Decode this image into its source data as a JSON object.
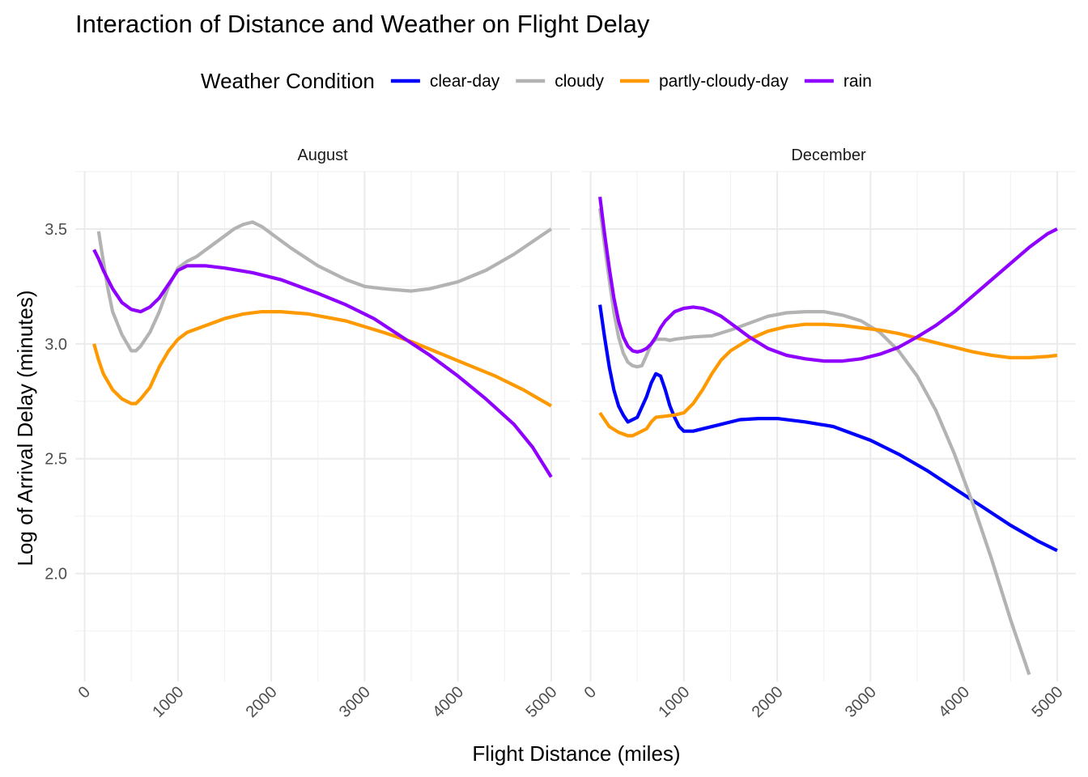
{
  "chart_data": {
    "type": "line",
    "title": "Interaction of Distance and Weather on Flight Delay",
    "xlabel": "Flight Distance (miles)",
    "ylabel": "Log of Arrival Delay (minutes)",
    "legend": {
      "title": "Weather Condition",
      "position": "top",
      "items": [
        {
          "name": "clear-day",
          "color": "#0000ff"
        },
        {
          "name": "cloudy",
          "color": "#b3b3b3"
        },
        {
          "name": "partly-cloudy-day",
          "color": "#ff9900"
        },
        {
          "name": "rain",
          "color": "#8f00ff"
        }
      ]
    },
    "xlim": [
      -100,
      5200
    ],
    "ylim": [
      1.53,
      3.75
    ],
    "x_ticks": [
      0,
      1000,
      2000,
      3000,
      4000,
      5000
    ],
    "x_tick_labels": [
      "0",
      "1000",
      "2000",
      "3000",
      "4000",
      "5000"
    ],
    "y_ticks": [
      2.0,
      2.5,
      3.0,
      3.5
    ],
    "y_tick_labels": [
      "2.0",
      "2.5",
      "3.0",
      "3.5"
    ],
    "grid": true,
    "panels": [
      {
        "label": "August",
        "series": [
          {
            "name": "cloudy",
            "color": "#b3b3b3",
            "points": [
              [
                150,
                3.49
              ],
              [
                200,
                3.36
              ],
              [
                250,
                3.24
              ],
              [
                300,
                3.14
              ],
              [
                400,
                3.04
              ],
              [
                500,
                2.97
              ],
              [
                550,
                2.97
              ],
              [
                600,
                2.99
              ],
              [
                700,
                3.05
              ],
              [
                800,
                3.14
              ],
              [
                900,
                3.25
              ],
              [
                1000,
                3.33
              ],
              [
                1100,
                3.36
              ],
              [
                1200,
                3.38
              ],
              [
                1300,
                3.41
              ],
              [
                1400,
                3.44
              ],
              [
                1500,
                3.47
              ],
              [
                1600,
                3.5
              ],
              [
                1700,
                3.52
              ],
              [
                1800,
                3.53
              ],
              [
                1900,
                3.51
              ],
              [
                2000,
                3.48
              ],
              [
                2200,
                3.42
              ],
              [
                2500,
                3.34
              ],
              [
                2800,
                3.28
              ],
              [
                3000,
                3.25
              ],
              [
                3200,
                3.24
              ],
              [
                3500,
                3.23
              ],
              [
                3700,
                3.24
              ],
              [
                4000,
                3.27
              ],
              [
                4300,
                3.32
              ],
              [
                4600,
                3.39
              ],
              [
                5000,
                3.5
              ]
            ]
          },
          {
            "name": "partly-cloudy-day",
            "color": "#ff9900",
            "points": [
              [
                100,
                3.0
              ],
              [
                150,
                2.93
              ],
              [
                200,
                2.87
              ],
              [
                300,
                2.8
              ],
              [
                400,
                2.76
              ],
              [
                500,
                2.74
              ],
              [
                550,
                2.74
              ],
              [
                600,
                2.76
              ],
              [
                700,
                2.81
              ],
              [
                800,
                2.9
              ],
              [
                900,
                2.97
              ],
              [
                1000,
                3.02
              ],
              [
                1100,
                3.05
              ],
              [
                1300,
                3.08
              ],
              [
                1500,
                3.11
              ],
              [
                1700,
                3.13
              ],
              [
                1900,
                3.14
              ],
              [
                2100,
                3.14
              ],
              [
                2400,
                3.13
              ],
              [
                2800,
                3.1
              ],
              [
                3200,
                3.05
              ],
              [
                3500,
                3.01
              ],
              [
                3800,
                2.96
              ],
              [
                4100,
                2.91
              ],
              [
                4400,
                2.86
              ],
              [
                4700,
                2.8
              ],
              [
                5000,
                2.73
              ]
            ]
          },
          {
            "name": "rain",
            "color": "#8f00ff",
            "points": [
              [
                100,
                3.41
              ],
              [
                150,
                3.37
              ],
              [
                200,
                3.32
              ],
              [
                300,
                3.24
              ],
              [
                400,
                3.18
              ],
              [
                500,
                3.15
              ],
              [
                600,
                3.14
              ],
              [
                700,
                3.16
              ],
              [
                800,
                3.2
              ],
              [
                900,
                3.26
              ],
              [
                1000,
                3.32
              ],
              [
                1100,
                3.34
              ],
              [
                1300,
                3.34
              ],
              [
                1500,
                3.33
              ],
              [
                1800,
                3.31
              ],
              [
                2100,
                3.28
              ],
              [
                2500,
                3.22
              ],
              [
                2800,
                3.17
              ],
              [
                3100,
                3.11
              ],
              [
                3400,
                3.03
              ],
              [
                3700,
                2.95
              ],
              [
                4000,
                2.86
              ],
              [
                4300,
                2.76
              ],
              [
                4600,
                2.65
              ],
              [
                4800,
                2.55
              ],
              [
                5000,
                2.42
              ]
            ]
          }
        ]
      },
      {
        "label": "December",
        "series": [
          {
            "name": "clear-day",
            "color": "#0000ff",
            "points": [
              [
                100,
                3.17
              ],
              [
                150,
                3.03
              ],
              [
                200,
                2.9
              ],
              [
                250,
                2.8
              ],
              [
                300,
                2.73
              ],
              [
                350,
                2.69
              ],
              [
                400,
                2.66
              ],
              [
                450,
                2.67
              ],
              [
                500,
                2.68
              ],
              [
                600,
                2.77
              ],
              [
                650,
                2.83
              ],
              [
                700,
                2.87
              ],
              [
                750,
                2.86
              ],
              [
                800,
                2.8
              ],
              [
                850,
                2.73
              ],
              [
                900,
                2.68
              ],
              [
                950,
                2.64
              ],
              [
                1000,
                2.62
              ],
              [
                1100,
                2.62
              ],
              [
                1200,
                2.63
              ],
              [
                1400,
                2.65
              ],
              [
                1600,
                2.67
              ],
              [
                1800,
                2.675
              ],
              [
                2000,
                2.675
              ],
              [
                2300,
                2.66
              ],
              [
                2600,
                2.64
              ],
              [
                3000,
                2.58
              ],
              [
                3300,
                2.52
              ],
              [
                3600,
                2.45
              ],
              [
                3900,
                2.37
              ],
              [
                4200,
                2.29
              ],
              [
                4500,
                2.21
              ],
              [
                4800,
                2.14
              ],
              [
                5000,
                2.1
              ]
            ]
          },
          {
            "name": "cloudy",
            "color": "#b3b3b3",
            "points": [
              [
                100,
                3.59
              ],
              [
                150,
                3.43
              ],
              [
                200,
                3.28
              ],
              [
                250,
                3.14
              ],
              [
                300,
                3.03
              ],
              [
                350,
                2.96
              ],
              [
                400,
                2.92
              ],
              [
                450,
                2.905
              ],
              [
                500,
                2.9
              ],
              [
                550,
                2.905
              ],
              [
                600,
                2.95
              ],
              [
                650,
                3.0
              ],
              [
                700,
                3.02
              ],
              [
                800,
                3.02
              ],
              [
                850,
                3.015
              ],
              [
                900,
                3.02
              ],
              [
                1000,
                3.025
              ],
              [
                1100,
                3.03
              ],
              [
                1300,
                3.035
              ],
              [
                1500,
                3.06
              ],
              [
                1700,
                3.09
              ],
              [
                1900,
                3.12
              ],
              [
                2100,
                3.135
              ],
              [
                2300,
                3.14
              ],
              [
                2500,
                3.14
              ],
              [
                2700,
                3.125
              ],
              [
                2900,
                3.1
              ],
              [
                3100,
                3.05
              ],
              [
                3300,
                2.97
              ],
              [
                3500,
                2.86
              ],
              [
                3700,
                2.71
              ],
              [
                3900,
                2.52
              ],
              [
                4100,
                2.3
              ],
              [
                4300,
                2.06
              ],
              [
                4500,
                1.8
              ],
              [
                4700,
                1.56
              ]
            ]
          },
          {
            "name": "partly-cloudy-day",
            "color": "#ff9900",
            "points": [
              [
                100,
                2.7
              ],
              [
                150,
                2.67
              ],
              [
                200,
                2.64
              ],
              [
                300,
                2.615
              ],
              [
                400,
                2.6
              ],
              [
                450,
                2.6
              ],
              [
                500,
                2.61
              ],
              [
                600,
                2.63
              ],
              [
                650,
                2.66
              ],
              [
                700,
                2.68
              ],
              [
                800,
                2.685
              ],
              [
                900,
                2.69
              ],
              [
                1000,
                2.7
              ],
              [
                1100,
                2.74
              ],
              [
                1200,
                2.8
              ],
              [
                1300,
                2.87
              ],
              [
                1400,
                2.93
              ],
              [
                1500,
                2.97
              ],
              [
                1700,
                3.02
              ],
              [
                1900,
                3.055
              ],
              [
                2100,
                3.075
              ],
              [
                2300,
                3.085
              ],
              [
                2500,
                3.085
              ],
              [
                2700,
                3.08
              ],
              [
                2900,
                3.07
              ],
              [
                3100,
                3.06
              ],
              [
                3300,
                3.045
              ],
              [
                3500,
                3.025
              ],
              [
                3700,
                3.005
              ],
              [
                3900,
                2.985
              ],
              [
                4100,
                2.965
              ],
              [
                4300,
                2.95
              ],
              [
                4500,
                2.94
              ],
              [
                4700,
                2.94
              ],
              [
                4900,
                2.945
              ],
              [
                5000,
                2.95
              ]
            ]
          },
          {
            "name": "rain",
            "color": "#8f00ff",
            "points": [
              [
                100,
                3.64
              ],
              [
                150,
                3.48
              ],
              [
                200,
                3.33
              ],
              [
                250,
                3.2
              ],
              [
                300,
                3.1
              ],
              [
                350,
                3.03
              ],
              [
                400,
                2.99
              ],
              [
                450,
                2.97
              ],
              [
                500,
                2.965
              ],
              [
                550,
                2.97
              ],
              [
                600,
                2.98
              ],
              [
                650,
                3.0
              ],
              [
                700,
                3.03
              ],
              [
                750,
                3.07
              ],
              [
                800,
                3.1
              ],
              [
                900,
                3.14
              ],
              [
                1000,
                3.155
              ],
              [
                1100,
                3.16
              ],
              [
                1200,
                3.155
              ],
              [
                1300,
                3.14
              ],
              [
                1400,
                3.12
              ],
              [
                1500,
                3.09
              ],
              [
                1700,
                3.03
              ],
              [
                1900,
                2.98
              ],
              [
                2100,
                2.95
              ],
              [
                2300,
                2.935
              ],
              [
                2500,
                2.925
              ],
              [
                2700,
                2.925
              ],
              [
                2900,
                2.935
              ],
              [
                3100,
                2.955
              ],
              [
                3300,
                2.985
              ],
              [
                3500,
                3.03
              ],
              [
                3700,
                3.08
              ],
              [
                3900,
                3.14
              ],
              [
                4100,
                3.21
              ],
              [
                4300,
                3.28
              ],
              [
                4500,
                3.35
              ],
              [
                4700,
                3.42
              ],
              [
                4900,
                3.48
              ],
              [
                5000,
                3.5
              ]
            ]
          }
        ]
      }
    ]
  }
}
